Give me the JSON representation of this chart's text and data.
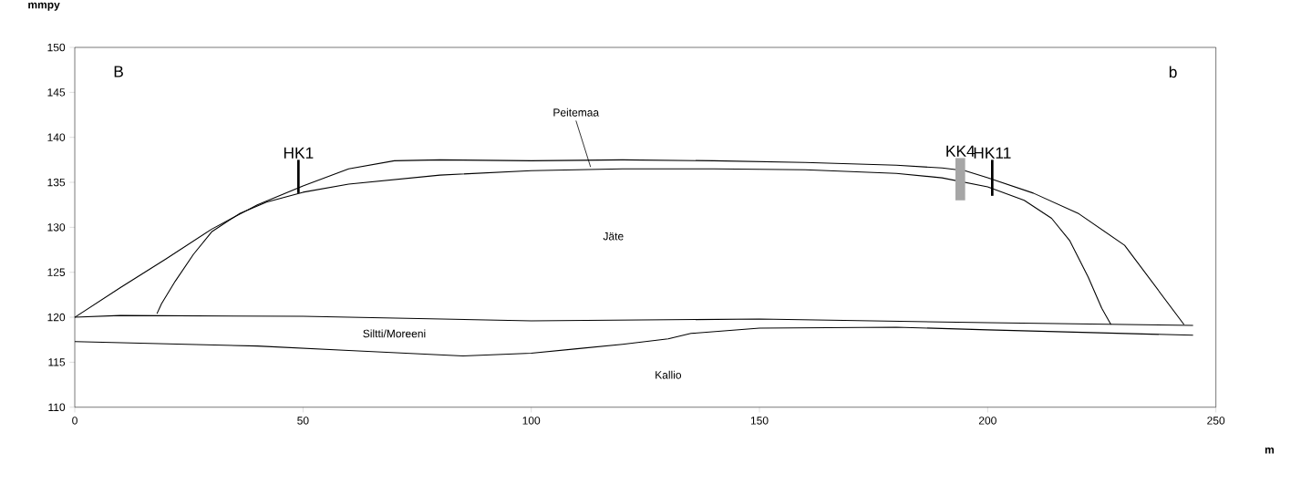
{
  "chart_data": {
    "type": "line",
    "xlabel": "m",
    "ylabel": "mmpy",
    "xlim": [
      0,
      250
    ],
    "ylim": [
      110,
      150
    ],
    "xticks": [
      0,
      50,
      100,
      150,
      200,
      250
    ],
    "yticks": [
      110,
      115,
      120,
      125,
      130,
      135,
      140,
      145,
      150
    ],
    "grid": false,
    "marker": "none",
    "line_style": "solid",
    "series": [
      {
        "color": "#000000",
        "x": [
          0,
          10,
          20,
          30,
          40,
          50,
          60,
          70,
          80,
          100,
          120,
          140,
          160,
          180,
          190,
          195,
          200,
          210,
          220,
          230,
          243
        ],
        "values": [
          120,
          123.3,
          126.5,
          129.8,
          132.5,
          134.6,
          136.5,
          137.4,
          137.5,
          137.4,
          137.5,
          137.4,
          137.2,
          136.9,
          136.6,
          136.3,
          135.5,
          133.8,
          131.5,
          128,
          119.2
        ]
      },
      {
        "color": "#000000",
        "x": [
          18,
          19,
          22,
          26,
          30,
          36,
          42,
          50,
          60,
          80,
          100,
          120,
          140,
          160,
          180,
          190,
          200,
          208,
          214,
          218,
          222,
          225,
          227
        ],
        "values": [
          120.4,
          121.5,
          124,
          127,
          129.5,
          131.5,
          132.8,
          133.9,
          134.8,
          135.8,
          136.3,
          136.5,
          136.5,
          136.4,
          136,
          135.5,
          134.5,
          133,
          131,
          128.5,
          124.5,
          121,
          119.2
        ]
      },
      {
        "color": "#000000",
        "x": [
          0,
          10,
          50,
          100,
          150,
          200,
          245
        ],
        "values": [
          120,
          120.2,
          120.1,
          119.6,
          119.8,
          119.4,
          119.1
        ]
      },
      {
        "color": "#000000",
        "x": [
          0,
          40,
          60,
          85,
          100,
          110,
          120,
          130,
          135,
          150,
          180,
          200,
          245
        ],
        "values": [
          117.3,
          116.8,
          116.3,
          115.7,
          116,
          116.5,
          117,
          117.6,
          118.2,
          118.8,
          118.9,
          118.6,
          118
        ]
      },
      {
        "name": "HK1",
        "color": "#000000",
        "x": [
          49,
          49
        ],
        "values": [
          133.8,
          137.5
        ]
      },
      {
        "name": "KK4",
        "color": "#a6a6a6",
        "x": [
          194,
          194
        ],
        "values": [
          133,
          137.7
        ]
      },
      {
        "name": "HK11",
        "color": "#000000",
        "x": [
          201,
          201
        ],
        "values": [
          133.5,
          137.5
        ]
      }
    ],
    "annotations": [
      "B",
      "b",
      {
        "text": "Peitemaa",
        "x": 113,
        "y": 136.7
      },
      "Jäte",
      "Siltti/Moreeni",
      "Kallio"
    ]
  }
}
